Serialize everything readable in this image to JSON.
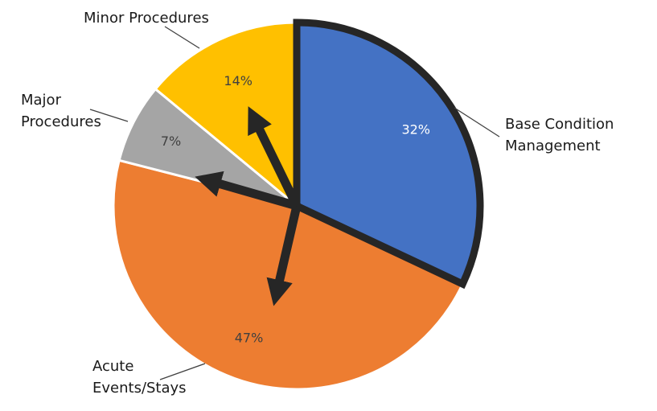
{
  "chart_data": {
    "type": "pie",
    "title": "",
    "slices": [
      {
        "label_lines": [
          "Base Condition",
          "Management"
        ],
        "value": 32,
        "value_label": "32%",
        "color": "#4472C4",
        "label_color": "#ffffff",
        "highlighted": true
      },
      {
        "label_lines": [
          "Acute",
          "Events/Stays"
        ],
        "value": 47,
        "value_label": "47%",
        "color": "#ED7D31",
        "label_color": "#404040",
        "highlighted": false
      },
      {
        "label_lines": [
          "Major",
          "Procedures"
        ],
        "value": 7,
        "value_label": "7%",
        "color": "#A5A5A5",
        "label_color": "#404040",
        "highlighted": false
      },
      {
        "label_lines": [
          "Minor Procedures"
        ],
        "value": 14,
        "value_label": "14%",
        "color": "#FFC000",
        "label_color": "#404040",
        "highlighted": false
      }
    ],
    "start_angle_deg": 0,
    "direction": "clockwise",
    "highlight_outline_color": "#262626",
    "arrow_color": "#262626",
    "arrows_point_to": [
      "Acute Events/Stays",
      "Major Procedures",
      "Minor Procedures"
    ]
  }
}
